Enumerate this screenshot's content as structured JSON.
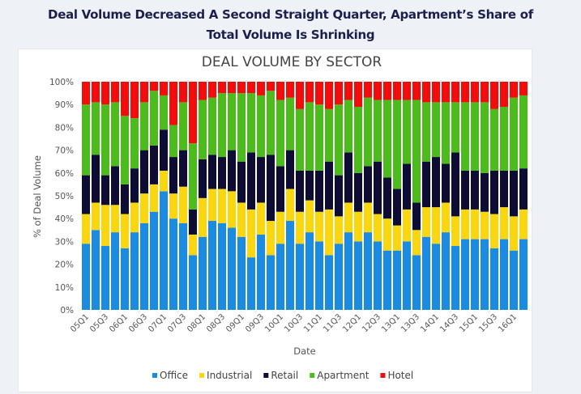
{
  "headline": {
    "line1": "Deal Volume Decreased A Second Straight Quarter, Apartment’s Share of",
    "line2": "Total Volume Is Shrinking"
  },
  "chart_data": {
    "type": "bar",
    "stacked": true,
    "normalized": true,
    "title": "DEAL VOLUME BY SECTOR",
    "xlabel": "Date",
    "ylabel": "% of Deal Volume",
    "ylim": [
      0,
      100
    ],
    "yticks": [
      "0%",
      "10%",
      "20%",
      "30%",
      "40%",
      "50%",
      "60%",
      "70%",
      "80%",
      "90%",
      "100%"
    ],
    "grid": false,
    "legend_position": "bottom",
    "categories": [
      "05Q1",
      "05Q2",
      "05Q3",
      "05Q4",
      "06Q1",
      "06Q2",
      "06Q3",
      "06Q4",
      "07Q1",
      "07Q2",
      "07Q3",
      "07Q4",
      "08Q1",
      "08Q2",
      "08Q3",
      "08Q4",
      "09Q1",
      "09Q2",
      "09Q3",
      "09Q4",
      "10Q1",
      "10Q2",
      "10Q3",
      "10Q4",
      "11Q1",
      "11Q2",
      "11Q3",
      "11Q4",
      "12Q1",
      "12Q2",
      "12Q3",
      "12Q4",
      "13Q1",
      "13Q2",
      "13Q3",
      "13Q4",
      "14Q1",
      "14Q2",
      "14Q3",
      "14Q4",
      "15Q1",
      "15Q2",
      "15Q3",
      "15Q4",
      "16Q1",
      "16Q2"
    ],
    "xtick_labels": [
      "05Q1",
      "05Q3",
      "06Q1",
      "06Q3",
      "07Q1",
      "07Q3",
      "08Q1",
      "08Q3",
      "09Q1",
      "09Q3",
      "10Q1",
      "10Q3",
      "11Q1",
      "11Q3",
      "12Q1",
      "12Q3",
      "13Q1",
      "13Q3",
      "14Q1",
      "14Q3",
      "15Q1",
      "15Q3",
      "16Q1"
    ],
    "series": [
      {
        "name": "Office",
        "color": "#1a8be0",
        "values": [
          29,
          35,
          28,
          34,
          27,
          34,
          38,
          43,
          52,
          40,
          38,
          24,
          32,
          39,
          38,
          36,
          32,
          23,
          33,
          24,
          29,
          39,
          29,
          34,
          30,
          24,
          29,
          34,
          30,
          34,
          30,
          26,
          26,
          30,
          24,
          32,
          29,
          34,
          28,
          31,
          31,
          31,
          27,
          31,
          26,
          31
        ]
      },
      {
        "name": "Industrial",
        "color": "#fad60f",
        "values": [
          13,
          12,
          18,
          12,
          15,
          13,
          13,
          12,
          9,
          11,
          16,
          9,
          17,
          14,
          15,
          16,
          15,
          21,
          14,
          15,
          14,
          14,
          14,
          14,
          13,
          20,
          12,
          13,
          13,
          13,
          12,
          14,
          11,
          14,
          11,
          13,
          16,
          13,
          13,
          13,
          13,
          12,
          15,
          14,
          15,
          13
        ]
      },
      {
        "name": "Retail",
        "color": "#0c0c35",
        "values": [
          17,
          21,
          13,
          17,
          13,
          15,
          19,
          17,
          18,
          16,
          16,
          11,
          17,
          15,
          14,
          18,
          18,
          25,
          20,
          29,
          20,
          17,
          18,
          13,
          18,
          21,
          18,
          22,
          17,
          16,
          23,
          18,
          16,
          20,
          12,
          20,
          22,
          17,
          28,
          17,
          17,
          17,
          19,
          16,
          20,
          18
        ]
      },
      {
        "name": "Apartment",
        "color": "#4cbb1c",
        "values": [
          31,
          23,
          31,
          28,
          30,
          22,
          21,
          24,
          15,
          14,
          21,
          29,
          26,
          25,
          28,
          25,
          30,
          26,
          27,
          28,
          29,
          23,
          27,
          30,
          29,
          23,
          31,
          23,
          29,
          30,
          27,
          34,
          39,
          28,
          45,
          26,
          24,
          27,
          22,
          30,
          30,
          31,
          27,
          28,
          32,
          32
        ]
      },
      {
        "name": "Hotel",
        "color": "#f20c0c",
        "values": [
          10,
          9,
          10,
          9,
          15,
          16,
          9,
          4,
          6,
          19,
          9,
          27,
          8,
          7,
          5,
          5,
          5,
          5,
          6,
          4,
          8,
          7,
          12,
          9,
          10,
          12,
          10,
          8,
          11,
          7,
          8,
          8,
          8,
          8,
          8,
          9,
          9,
          9,
          9,
          9,
          9,
          9,
          12,
          11,
          7,
          6
        ]
      }
    ]
  }
}
